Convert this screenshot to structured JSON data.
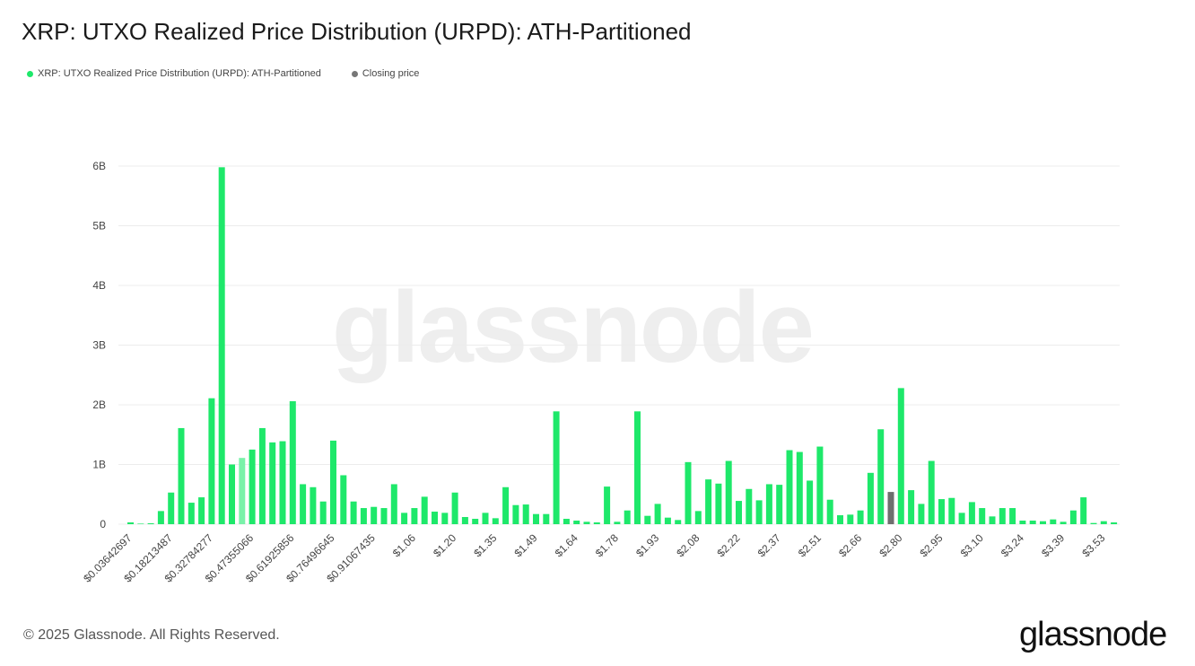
{
  "title": "XRP: UTXO Realized Price Distribution (URPD): ATH-Partitioned",
  "legend": [
    {
      "label": "XRP: UTXO Realized Price Distribution (URPD): ATH-Partitioned",
      "color": "#1ee86a"
    },
    {
      "label": "Closing price",
      "color": "#777777"
    }
  ],
  "watermark": "glassnode",
  "footer": "© 2025 Glassnode. All Rights Reserved.",
  "brand": "glassnode",
  "colors": {
    "bar": "#1ee86a",
    "bar_light": "#7af2a9",
    "closing": "#6e6e6e",
    "grid": "#ececec"
  },
  "chart_data": {
    "type": "bar",
    "ylim": [
      0,
      6
    ],
    "yticks": [
      {
        "v": 0,
        "label": "0"
      },
      {
        "v": 1,
        "label": "1B"
      },
      {
        "v": 2,
        "label": "2B"
      },
      {
        "v": 3,
        "label": "3B"
      },
      {
        "v": 4,
        "label": "4B"
      },
      {
        "v": 5,
        "label": "5B"
      },
      {
        "v": 6,
        "label": "6B"
      }
    ],
    "xticks": [
      {
        "index": 0,
        "label": "$0.03642697"
      },
      {
        "index": 4,
        "label": "$0.18213487"
      },
      {
        "index": 8,
        "label": "$0.32784277"
      },
      {
        "index": 12,
        "label": "$0.47355066"
      },
      {
        "index": 16,
        "label": "$0.61925856"
      },
      {
        "index": 20,
        "label": "$0.76496645"
      },
      {
        "index": 24,
        "label": "$0.91067435"
      },
      {
        "index": 28,
        "label": "$1.06"
      },
      {
        "index": 32,
        "label": "$1.20"
      },
      {
        "index": 36,
        "label": "$1.35"
      },
      {
        "index": 40,
        "label": "$1.49"
      },
      {
        "index": 44,
        "label": "$1.64"
      },
      {
        "index": 48,
        "label": "$1.78"
      },
      {
        "index": 52,
        "label": "$1.93"
      },
      {
        "index": 56,
        "label": "$2.08"
      },
      {
        "index": 60,
        "label": "$2.22"
      },
      {
        "index": 64,
        "label": "$2.37"
      },
      {
        "index": 68,
        "label": "$2.51"
      },
      {
        "index": 72,
        "label": "$2.66"
      },
      {
        "index": 76,
        "label": "$2.80"
      },
      {
        "index": 80,
        "label": "$2.95"
      },
      {
        "index": 84,
        "label": "$3.10"
      },
      {
        "index": 88,
        "label": "$3.24"
      },
      {
        "index": 92,
        "label": "$3.39"
      },
      {
        "index": 96,
        "label": "$3.53"
      }
    ],
    "closing_index": 75,
    "light_indices": [
      11
    ],
    "values": [
      0.03,
      0.0,
      0.01,
      0.22,
      0.53,
      1.61,
      0.36,
      0.45,
      2.11,
      5.98,
      1.0,
      1.11,
      1.25,
      1.61,
      1.37,
      1.39,
      2.06,
      0.67,
      0.62,
      0.38,
      1.4,
      0.82,
      0.38,
      0.27,
      0.29,
      0.27,
      0.67,
      0.19,
      0.27,
      0.46,
      0.21,
      0.19,
      0.53,
      0.12,
      0.09,
      0.19,
      0.1,
      0.62,
      0.32,
      0.33,
      0.17,
      0.17,
      1.89,
      0.09,
      0.06,
      0.04,
      0.03,
      0.63,
      0.04,
      0.23,
      1.89,
      0.14,
      0.34,
      0.11,
      0.07,
      1.04,
      0.22,
      0.75,
      0.68,
      1.06,
      0.39,
      0.59,
      0.4,
      0.67,
      0.66,
      1.24,
      1.21,
      0.73,
      1.3,
      0.41,
      0.15,
      0.16,
      0.23,
      0.86,
      1.59,
      0.54,
      2.28,
      0.57,
      0.34,
      1.06,
      0.42,
      0.44,
      0.19,
      0.37,
      0.27,
      0.13,
      0.27,
      0.27,
      0.06,
      0.06,
      0.05,
      0.08,
      0.04,
      0.23,
      0.45,
      0.02,
      0.05,
      0.03
    ]
  }
}
